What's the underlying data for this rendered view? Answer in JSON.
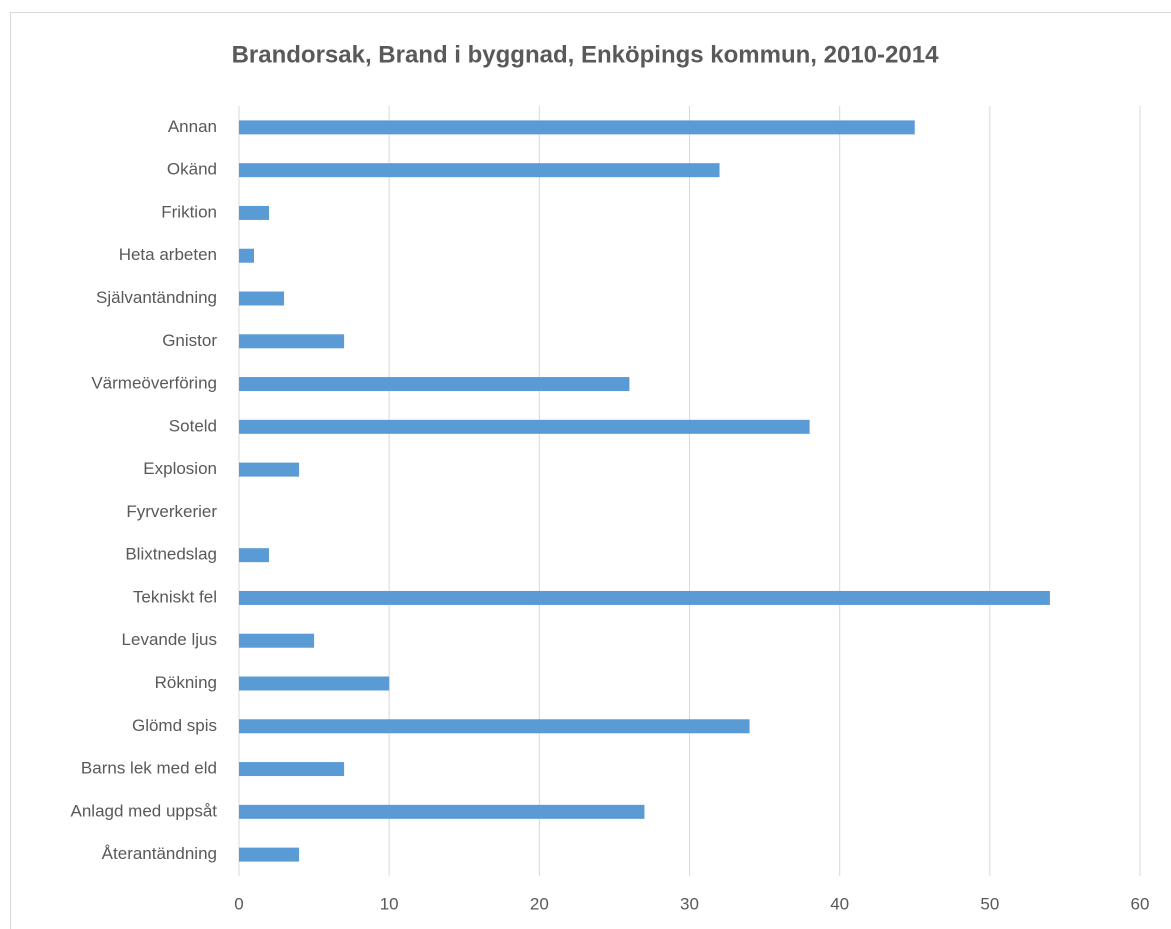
{
  "chart_data": {
    "type": "bar",
    "orientation": "horizontal",
    "title": "Brandorsak, Brand i byggnad, Enköpings kommun, 2010-2014",
    "categories": [
      "Annan",
      "Okänd",
      "Friktion",
      "Heta arbeten",
      "Självantändning",
      "Gnistor",
      "Värmeöverföring",
      "Soteld",
      "Explosion",
      "Fyrverkerier",
      "Blixtnedslag",
      "Tekniskt fel",
      "Levande ljus",
      "Rökning",
      "Glömd spis",
      "Barns lek med eld",
      "Anlagd med uppsåt",
      "Återantändning"
    ],
    "values": [
      45,
      32,
      2,
      1,
      3,
      7,
      26,
      38,
      4,
      0,
      2,
      54,
      5,
      10,
      34,
      7,
      27,
      4
    ],
    "color": "#5b9bd5",
    "xlim": [
      0,
      60
    ],
    "xticks": [
      0,
      10,
      20,
      30,
      40,
      50,
      60
    ],
    "grid": true
  }
}
